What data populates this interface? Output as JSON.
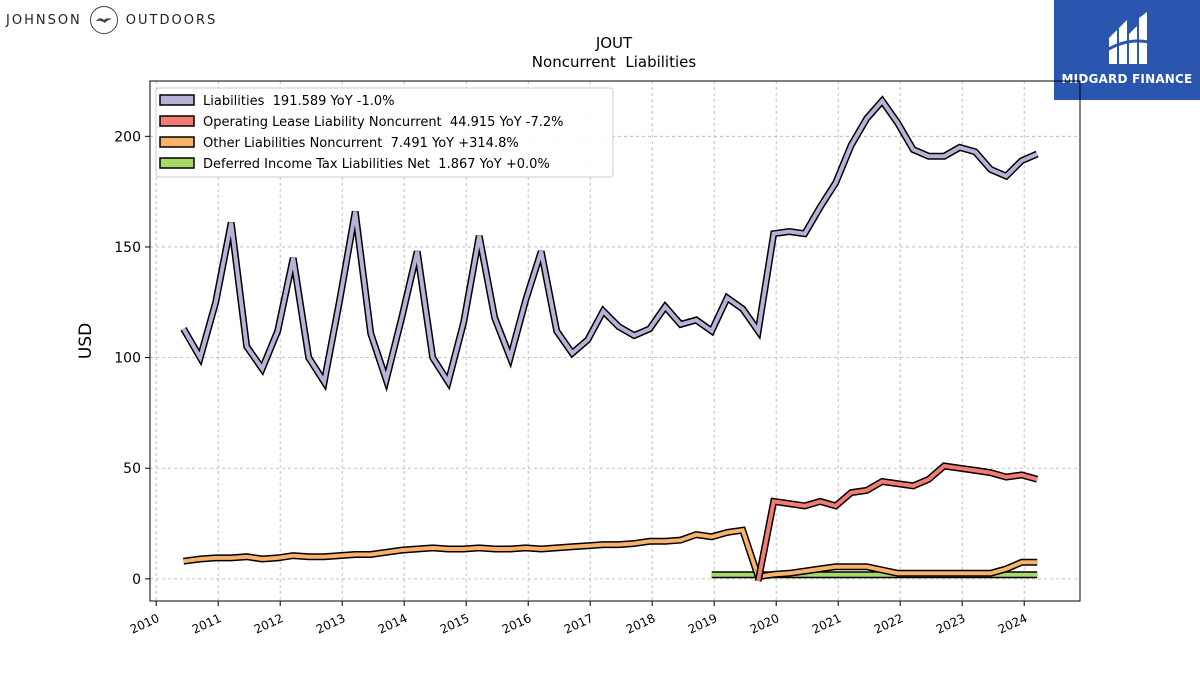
{
  "brand": {
    "left_word_1": "JOHNSON",
    "left_word_2": "OUTDOORS",
    "right_name": "MIDGARD FINANCE",
    "right_color": "#2a56b0"
  },
  "chart_data": {
    "type": "line",
    "title": "JOUT",
    "subtitle": "Noncurrent  Liabilities",
    "ylabel": "USD",
    "xlabel": "",
    "xlim": [
      2009.9,
      2024.9
    ],
    "ylim": [
      -10,
      225
    ],
    "yticks": [
      0,
      50,
      100,
      150,
      200
    ],
    "xticks": [
      "2010",
      "2011",
      "2012",
      "2013",
      "2014",
      "2015",
      "2016",
      "2017",
      "2018",
      "2019",
      "2020",
      "2021",
      "2022",
      "2023",
      "2024"
    ],
    "grid": true,
    "legend_position": "top-left",
    "series": [
      {
        "name": "Liabilities",
        "legend": "Liabilities  191.589 YoY -1.0%",
        "color": "#b7b3d8",
        "x": [
          2010.44,
          2010.71,
          2010.96,
          2011.21,
          2011.46,
          2011.71,
          2011.96,
          2012.21,
          2012.46,
          2012.71,
          2012.96,
          2013.21,
          2013.46,
          2013.71,
          2013.96,
          2014.21,
          2014.46,
          2014.71,
          2014.96,
          2015.21,
          2015.46,
          2015.71,
          2015.96,
          2016.21,
          2016.46,
          2016.71,
          2016.96,
          2017.21,
          2017.46,
          2017.71,
          2017.96,
          2018.21,
          2018.46,
          2018.71,
          2018.96,
          2019.21,
          2019.46,
          2019.71,
          2019.96,
          2020.21,
          2020.46,
          2020.71,
          2020.96,
          2021.21,
          2021.46,
          2021.71,
          2021.96,
          2022.21,
          2022.46,
          2022.71,
          2022.96,
          2023.21,
          2023.46,
          2023.71,
          2023.96,
          2024.21
        ],
        "values": [
          113,
          100,
          125,
          161,
          105,
          95,
          112,
          145,
          100,
          89,
          126,
          166,
          111,
          90,
          118,
          148,
          100,
          89,
          116,
          155,
          118,
          100,
          126,
          148,
          112,
          102,
          108,
          121,
          114,
          110,
          113,
          123,
          115,
          117,
          112,
          127,
          122,
          112,
          156,
          157,
          156,
          168,
          179,
          196,
          208,
          216,
          206,
          194,
          191,
          191,
          195,
          193,
          185,
          182,
          189,
          192
        ]
      },
      {
        "name": "Operating Lease Liability Noncurrent",
        "legend": "Operating Lease Liability Noncurrent  44.915 YoY -7.2%",
        "color": "#f07c72",
        "x": [
          2019.71,
          2019.96,
          2020.21,
          2020.46,
          2020.71,
          2020.96,
          2021.21,
          2021.46,
          2021.71,
          2021.96,
          2022.21,
          2022.46,
          2022.71,
          2022.96,
          2023.21,
          2023.46,
          2023.71,
          2023.96,
          2024.21
        ],
        "values": [
          -1,
          35,
          34,
          33,
          35,
          33,
          39,
          40,
          44,
          43,
          42,
          45,
          51,
          50,
          49,
          48,
          46,
          47,
          45
        ]
      },
      {
        "name": "Other Liabilities Noncurrent",
        "legend": "Other Liabilities Noncurrent  7.491 YoY +314.8%",
        "color": "#f8b26a",
        "x": [
          2010.44,
          2010.71,
          2010.96,
          2011.21,
          2011.46,
          2011.71,
          2011.96,
          2012.21,
          2012.46,
          2012.71,
          2012.96,
          2013.21,
          2013.46,
          2013.71,
          2013.96,
          2014.21,
          2014.46,
          2014.71,
          2014.96,
          2015.21,
          2015.46,
          2015.71,
          2015.96,
          2016.21,
          2016.46,
          2016.71,
          2016.96,
          2017.21,
          2017.46,
          2017.71,
          2017.96,
          2018.21,
          2018.46,
          2018.71,
          2018.96,
          2019.21,
          2019.46,
          2019.71,
          2019.96,
          2020.21,
          2020.46,
          2020.71,
          2020.96,
          2021.21,
          2021.46,
          2021.71,
          2021.96,
          2022.21,
          2022.46,
          2022.71,
          2022.96,
          2023.21,
          2023.46,
          2023.71,
          2023.96,
          2024.21
        ],
        "values": [
          8,
          9,
          9.5,
          9.5,
          10,
          9,
          9.5,
          10.5,
          10,
          10,
          10.5,
          11,
          11,
          12,
          13,
          13.5,
          14,
          13.5,
          13.5,
          14,
          13.5,
          13.5,
          14,
          13.5,
          14,
          14.5,
          15,
          15.5,
          15.5,
          16,
          17,
          17,
          17.5,
          20,
          19,
          21,
          22,
          1,
          2,
          2.5,
          3.5,
          4.5,
          5.5,
          5.5,
          5.5,
          4,
          2.5,
          2.5,
          2.5,
          2.5,
          2.5,
          2.5,
          2.5,
          4.5,
          7.5,
          7.5
        ]
      },
      {
        "name": "Deferred Income Tax Liabilities Net",
        "legend": "Deferred Income Tax Liabilities Net  1.867 YoY +0.0%",
        "color": "#a6d96a",
        "x": [
          2018.96,
          2019.21,
          2019.46,
          2019.71,
          2019.96,
          2020.21,
          2020.46,
          2020.71,
          2020.96,
          2021.21,
          2021.46,
          2021.71,
          2021.96,
          2022.21,
          2022.46,
          2022.71,
          2022.96,
          2023.21,
          2023.46,
          2023.71,
          2023.96,
          2024.21
        ],
        "values": [
          1.9,
          1.9,
          1.9,
          1.9,
          1.9,
          1.9,
          1.9,
          1.9,
          1.9,
          1.9,
          1.9,
          1.9,
          1.9,
          1.9,
          1.9,
          1.9,
          1.9,
          1.9,
          1.9,
          1.9,
          1.9,
          1.9
        ]
      }
    ]
  }
}
